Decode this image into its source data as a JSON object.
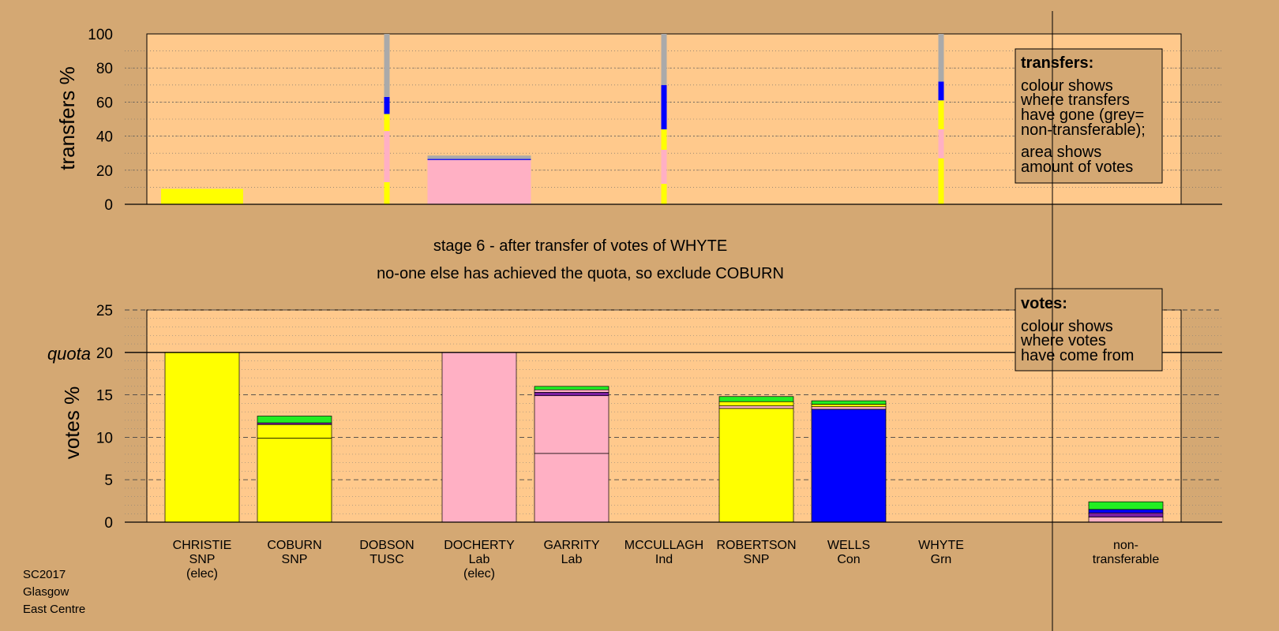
{
  "colors": {
    "background": "#d4a873",
    "plot": "#ffc98c",
    "SNP": "#ffff00",
    "Lab": "#ffb0c4",
    "Con": "#0000ff",
    "Grn": "#22ee22",
    "Ind": "#7a1fa0",
    "TUSC": "#ff4040",
    "nontransferable": "#aaaaaa"
  },
  "stage": {
    "line1": "stage 6 - after transfer of votes of WHYTE",
    "line2": "no-one else has achieved the quota, so exclude COBURN"
  },
  "legend_transfers": {
    "title": "transfers:",
    "lines": [
      "colour shows",
      "where transfers",
      "have gone (grey=",
      "non-transferable);",
      "area shows",
      "amount of votes"
    ]
  },
  "legend_votes": {
    "title": "votes:",
    "lines": [
      "colour shows",
      "where votes",
      "have come from"
    ]
  },
  "footer": [
    "SC2017",
    "Glasgow",
    "East Centre"
  ],
  "chart_data": [
    {
      "type": "bar",
      "ylabel": "transfers %",
      "ylim": [
        0,
        100
      ],
      "yticks": [
        0,
        20,
        40,
        60,
        80,
        100
      ],
      "bars": [
        {
          "category": "CHRISTIE",
          "segments": [
            {
              "color": "SNP",
              "value": 9
            }
          ]
        },
        {
          "category": "DOBSON",
          "segments": [
            {
              "color": "SNP",
              "value": 13
            },
            {
              "color": "Lab",
              "value": 30
            },
            {
              "color": "SNP",
              "value": 10
            },
            {
              "color": "Con",
              "value": 10
            },
            {
              "color": "nontransferable",
              "value": 37
            }
          ]
        },
        {
          "category": "DOCHERTY",
          "segments": [
            {
              "color": "Lab",
              "value": 26
            },
            {
              "color": "Con",
              "value": 0.6
            },
            {
              "color": "nontransferable",
              "value": 2
            }
          ]
        },
        {
          "category": "MCCULLAGH",
          "segments": [
            {
              "color": "SNP",
              "value": 12
            },
            {
              "color": "Lab",
              "value": 20
            },
            {
              "color": "SNP",
              "value": 12
            },
            {
              "color": "Con",
              "value": 26
            },
            {
              "color": "nontransferable",
              "value": 30
            }
          ]
        },
        {
          "category": "WHYTE",
          "segments": [
            {
              "color": "SNP",
              "value": 27
            },
            {
              "color": "Lab",
              "value": 17
            },
            {
              "color": "SNP",
              "value": 17
            },
            {
              "color": "Con",
              "value": 11
            },
            {
              "color": "nontransferable",
              "value": 28
            }
          ]
        }
      ]
    },
    {
      "type": "bar",
      "ylabel": "votes %",
      "ylim": [
        0,
        25
      ],
      "yticks": [
        0,
        5,
        10,
        15,
        20,
        25
      ],
      "quota": 20,
      "quota_label": "quota",
      "candidates": [
        {
          "name": "CHRISTIE",
          "party": "SNP",
          "note": "(elec)",
          "segments": [
            {
              "color": "SNP",
              "value": 20
            }
          ]
        },
        {
          "name": "COBURN",
          "party": "SNP",
          "note": "",
          "segments": [
            {
              "color": "SNP",
              "value": 9.9
            },
            {
              "color": "SNP",
              "value": 1.6
            },
            {
              "color": "Ind",
              "value": 0.2
            },
            {
              "color": "Grn",
              "value": 0.8
            }
          ]
        },
        {
          "name": "DOBSON",
          "party": "TUSC",
          "note": "",
          "segments": []
        },
        {
          "name": "DOCHERTY",
          "party": "Lab",
          "note": "(elec)",
          "segments": [
            {
              "color": "Lab",
              "value": 20
            }
          ]
        },
        {
          "name": "GARRITY",
          "party": "Lab",
          "note": "",
          "segments": [
            {
              "color": "Lab",
              "value": 8.1
            },
            {
              "color": "Lab",
              "value": 6.8
            },
            {
              "color": "Ind",
              "value": 0.4
            },
            {
              "color": "Lab",
              "value": 0.3
            },
            {
              "color": "Grn",
              "value": 0.4
            }
          ]
        },
        {
          "name": "MCCULLAGH",
          "party": "Ind",
          "note": "",
          "segments": []
        },
        {
          "name": "ROBERTSON",
          "party": "SNP",
          "note": "",
          "segments": [
            {
              "color": "SNP",
              "value": 13.4
            },
            {
              "color": "Lab",
              "value": 0.3
            },
            {
              "color": "SNP",
              "value": 0.5
            },
            {
              "color": "Grn",
              "value": 0.6
            }
          ]
        },
        {
          "name": "WELLS",
          "party": "Con",
          "note": "",
          "segments": [
            {
              "color": "Con",
              "value": 13.3
            },
            {
              "color": "Lab",
              "value": 0.3
            },
            {
              "color": "SNP",
              "value": 0.3
            },
            {
              "color": "Grn",
              "value": 0.4
            }
          ]
        },
        {
          "name": "WHYTE",
          "party": "Grn",
          "note": "",
          "segments": []
        },
        {
          "name": "non-",
          "party": "transferable",
          "note": "",
          "segments": [
            {
              "color": "Lab",
              "value": 0.6
            },
            {
              "color": "Ind",
              "value": 0.5
            },
            {
              "color": "Con",
              "value": 0.4
            },
            {
              "color": "Grn",
              "value": 0.9
            }
          ]
        }
      ]
    }
  ]
}
